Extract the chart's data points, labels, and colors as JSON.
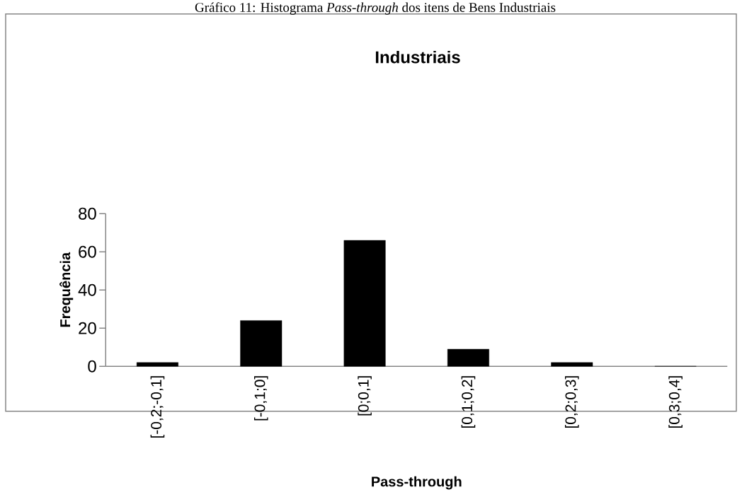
{
  "chart_data": {
    "type": "bar",
    "title": "Industriais",
    "xlabel": "Pass-through",
    "ylabel": "Frequência",
    "annotations": [
      "Gráfico 11: Histograma *Pass-through* dos itens de Bens Industriais"
    ],
    "categories": [
      "[-0,2;-0,1]",
      "[-0,1;0]",
      "[0;0,1]",
      "[0,1;0,2]",
      "[0,2;0,3]",
      "[0,3;0,4]"
    ],
    "values": [
      2,
      24,
      66,
      9,
      2,
      0
    ],
    "color": "#000000",
    "ylim": [
      0,
      80
    ],
    "yticks": [
      0,
      20,
      40,
      60,
      80
    ]
  }
}
